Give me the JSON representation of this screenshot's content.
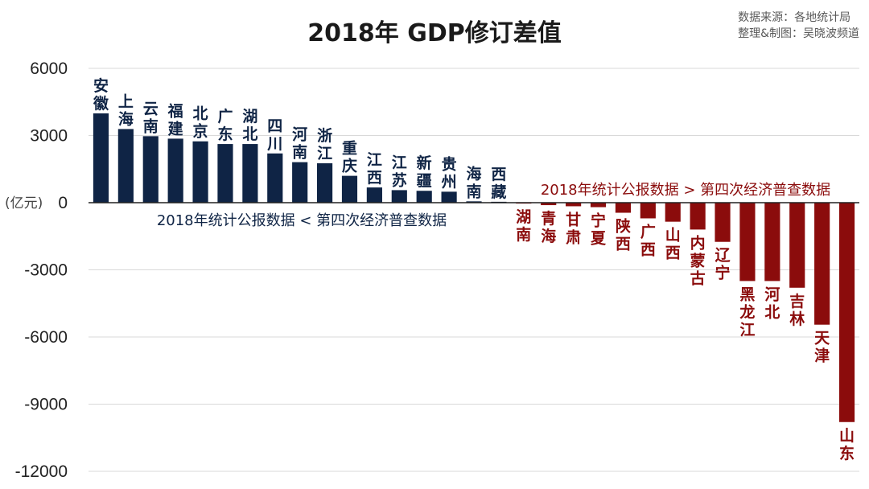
{
  "header": {
    "title": "2018年  GDP修订差值",
    "source_line1": "数据来源：各地统计局",
    "source_line2": "整理&制图：吴晓波频道"
  },
  "chart_data": {
    "type": "bar",
    "title": "2018年  GDP修订差值",
    "ylabel": "(亿元)",
    "ylim": [
      -12000,
      6000
    ],
    "yticks": [
      6000,
      3000,
      0,
      -3000,
      -6000,
      -9000,
      -12000
    ],
    "ytick_labels": [
      "6000",
      "3000",
      "0",
      "-3000",
      "-6000",
      "-9000",
      "-12000"
    ],
    "grid": true,
    "categories": [
      "安徽",
      "上海",
      "云南",
      "福建",
      "北京",
      "广东",
      "湖北",
      "四川",
      "河南",
      "浙江",
      "重庆",
      "江西",
      "江苏",
      "新疆",
      "贵州",
      "海南",
      "西藏",
      "湖南",
      "青海",
      "甘肃",
      "宁夏",
      "陕西",
      "广西",
      "山西",
      "内蒙古",
      "辽宁",
      "黑龙江",
      "河北",
      "吉林",
      "天津",
      "山东"
    ],
    "values": [
      3990,
      3290,
      2970,
      2860,
      2740,
      2620,
      2620,
      2200,
      1810,
      1760,
      1200,
      680,
      560,
      530,
      490,
      60,
      40,
      -40,
      -110,
      -160,
      -200,
      -450,
      -700,
      -850,
      -1200,
      -1750,
      -3500,
      -3500,
      -3800,
      -5450,
      -9800
    ],
    "colors": {
      "positive": "#0f2445",
      "negative": "#8b0c0c"
    },
    "annotations": {
      "positive_group": "2018年统计公报数据 < 第四次经济普查数据",
      "negative_group": "2018年统计公报数据 > 第四次经济普查数据"
    }
  }
}
